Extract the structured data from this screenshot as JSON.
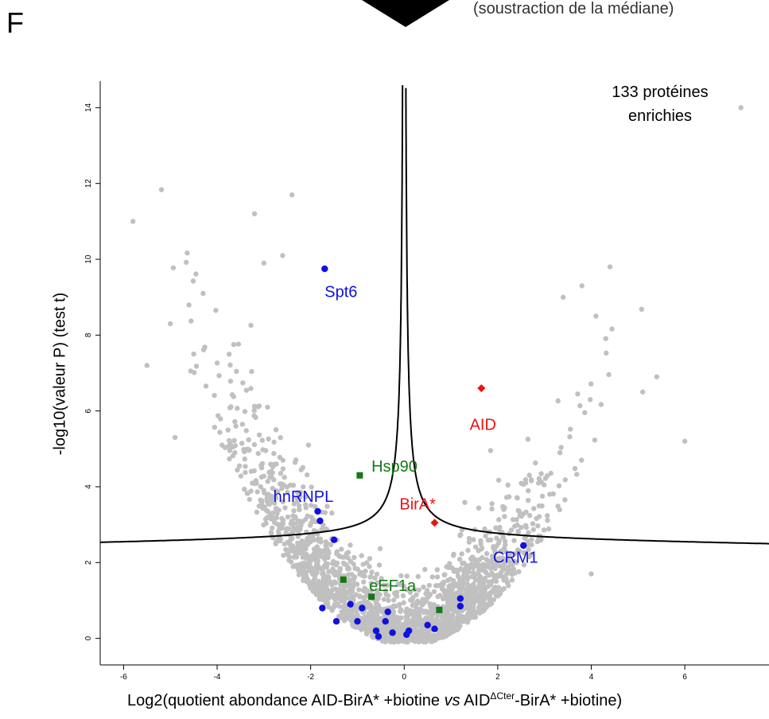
{
  "panel_letter": "F",
  "subtitle_partial": "(soustraction de la médiane)",
  "colors": {
    "background_points": "#c0c0c0",
    "blue": "#1010e0",
    "red": "#ee1111",
    "green": "#147814",
    "curve": "#000000"
  },
  "chart_data": {
    "type": "scatter",
    "xlabel": {
      "part1": "Log2(quotient abondance AID-BirA* +biotine ",
      "vs": "vs",
      "part2": " AID",
      "sup": "ΔCter",
      "part3": "-BirA* +biotine)"
    },
    "ylabel": "-log10(valeur P) (test t)",
    "xlim": [
      -6.5,
      7.8
    ],
    "ylim": [
      -0.7,
      14.7
    ],
    "xticks": [
      -6,
      -4,
      -2,
      0,
      2,
      4,
      6
    ],
    "yticks": [
      0,
      2,
      4,
      6,
      8,
      10,
      12,
      14
    ],
    "annotation": {
      "line1": "133 protéines",
      "line2": "enrichies"
    },
    "threshold_curve": {
      "s0": 0.5,
      "asymptote_y": 2.6,
      "description": "volcano significance cutoff"
    },
    "background_points_note": "~2000 grey proteins forming a volcano shape",
    "outlier_points": [
      [
        -5.8,
        11.0
      ],
      [
        -2.4,
        11.7
      ],
      [
        -3.2,
        11.2
      ],
      [
        -2.6,
        10.1
      ],
      [
        -3.0,
        9.9
      ],
      [
        7.2,
        14.0
      ],
      [
        4.4,
        9.8
      ],
      [
        3.8,
        9.3
      ],
      [
        4.1,
        8.5
      ],
      [
        3.4,
        9.0
      ],
      [
        -5.5,
        7.2
      ],
      [
        -4.5,
        7.5
      ],
      [
        -5.0,
        8.3
      ],
      [
        -4.3,
        9.1
      ],
      [
        5.1,
        6.5
      ],
      [
        6.0,
        5.2
      ],
      [
        5.4,
        6.9
      ],
      [
        4.0,
        1.7
      ],
      [
        -3.6,
        5.6
      ],
      [
        -4.9,
        5.3
      ]
    ],
    "highlighted": {
      "blue": {
        "labels": [
          {
            "text": "Spt6",
            "x": -1.7,
            "y": 9.0
          },
          {
            "text": "hnRNPL",
            "x": -2.8,
            "y": 3.6
          },
          {
            "text": "CRM1",
            "x": 1.9,
            "y": 2.0
          }
        ],
        "points": [
          [
            -1.7,
            9.75
          ],
          [
            -1.85,
            3.35
          ],
          [
            -1.8,
            3.1
          ],
          [
            -1.5,
            2.6
          ],
          [
            2.55,
            2.45
          ],
          [
            -1.75,
            0.8
          ],
          [
            -1.45,
            0.45
          ],
          [
            -1.15,
            0.9
          ],
          [
            -1.0,
            0.45
          ],
          [
            -0.9,
            0.8
          ],
          [
            -0.6,
            0.2
          ],
          [
            -0.55,
            0.05
          ],
          [
            -0.4,
            0.45
          ],
          [
            -0.35,
            0.7
          ],
          [
            -0.25,
            0.15
          ],
          [
            0.1,
            0.2
          ],
          [
            0.05,
            0.1
          ],
          [
            0.5,
            0.35
          ],
          [
            0.65,
            0.25
          ],
          [
            1.2,
            1.05
          ],
          [
            1.2,
            0.85
          ]
        ]
      },
      "red": {
        "labels": [
          {
            "text": "AID",
            "x": 1.4,
            "y": 5.5
          },
          {
            "text": "BirA*",
            "x": -0.1,
            "y": 3.4
          }
        ],
        "points": [
          [
            1.65,
            6.6
          ],
          [
            0.65,
            3.05
          ]
        ]
      },
      "green": {
        "labels": [
          {
            "text": "Hsp90",
            "x": -0.7,
            "y": 4.4
          },
          {
            "text": "eEF1a",
            "x": -0.75,
            "y": 1.25
          }
        ],
        "points": [
          [
            -0.95,
            4.3
          ],
          [
            -1.3,
            1.55
          ],
          [
            -0.7,
            1.1
          ],
          [
            0.75,
            0.75
          ]
        ]
      }
    }
  }
}
